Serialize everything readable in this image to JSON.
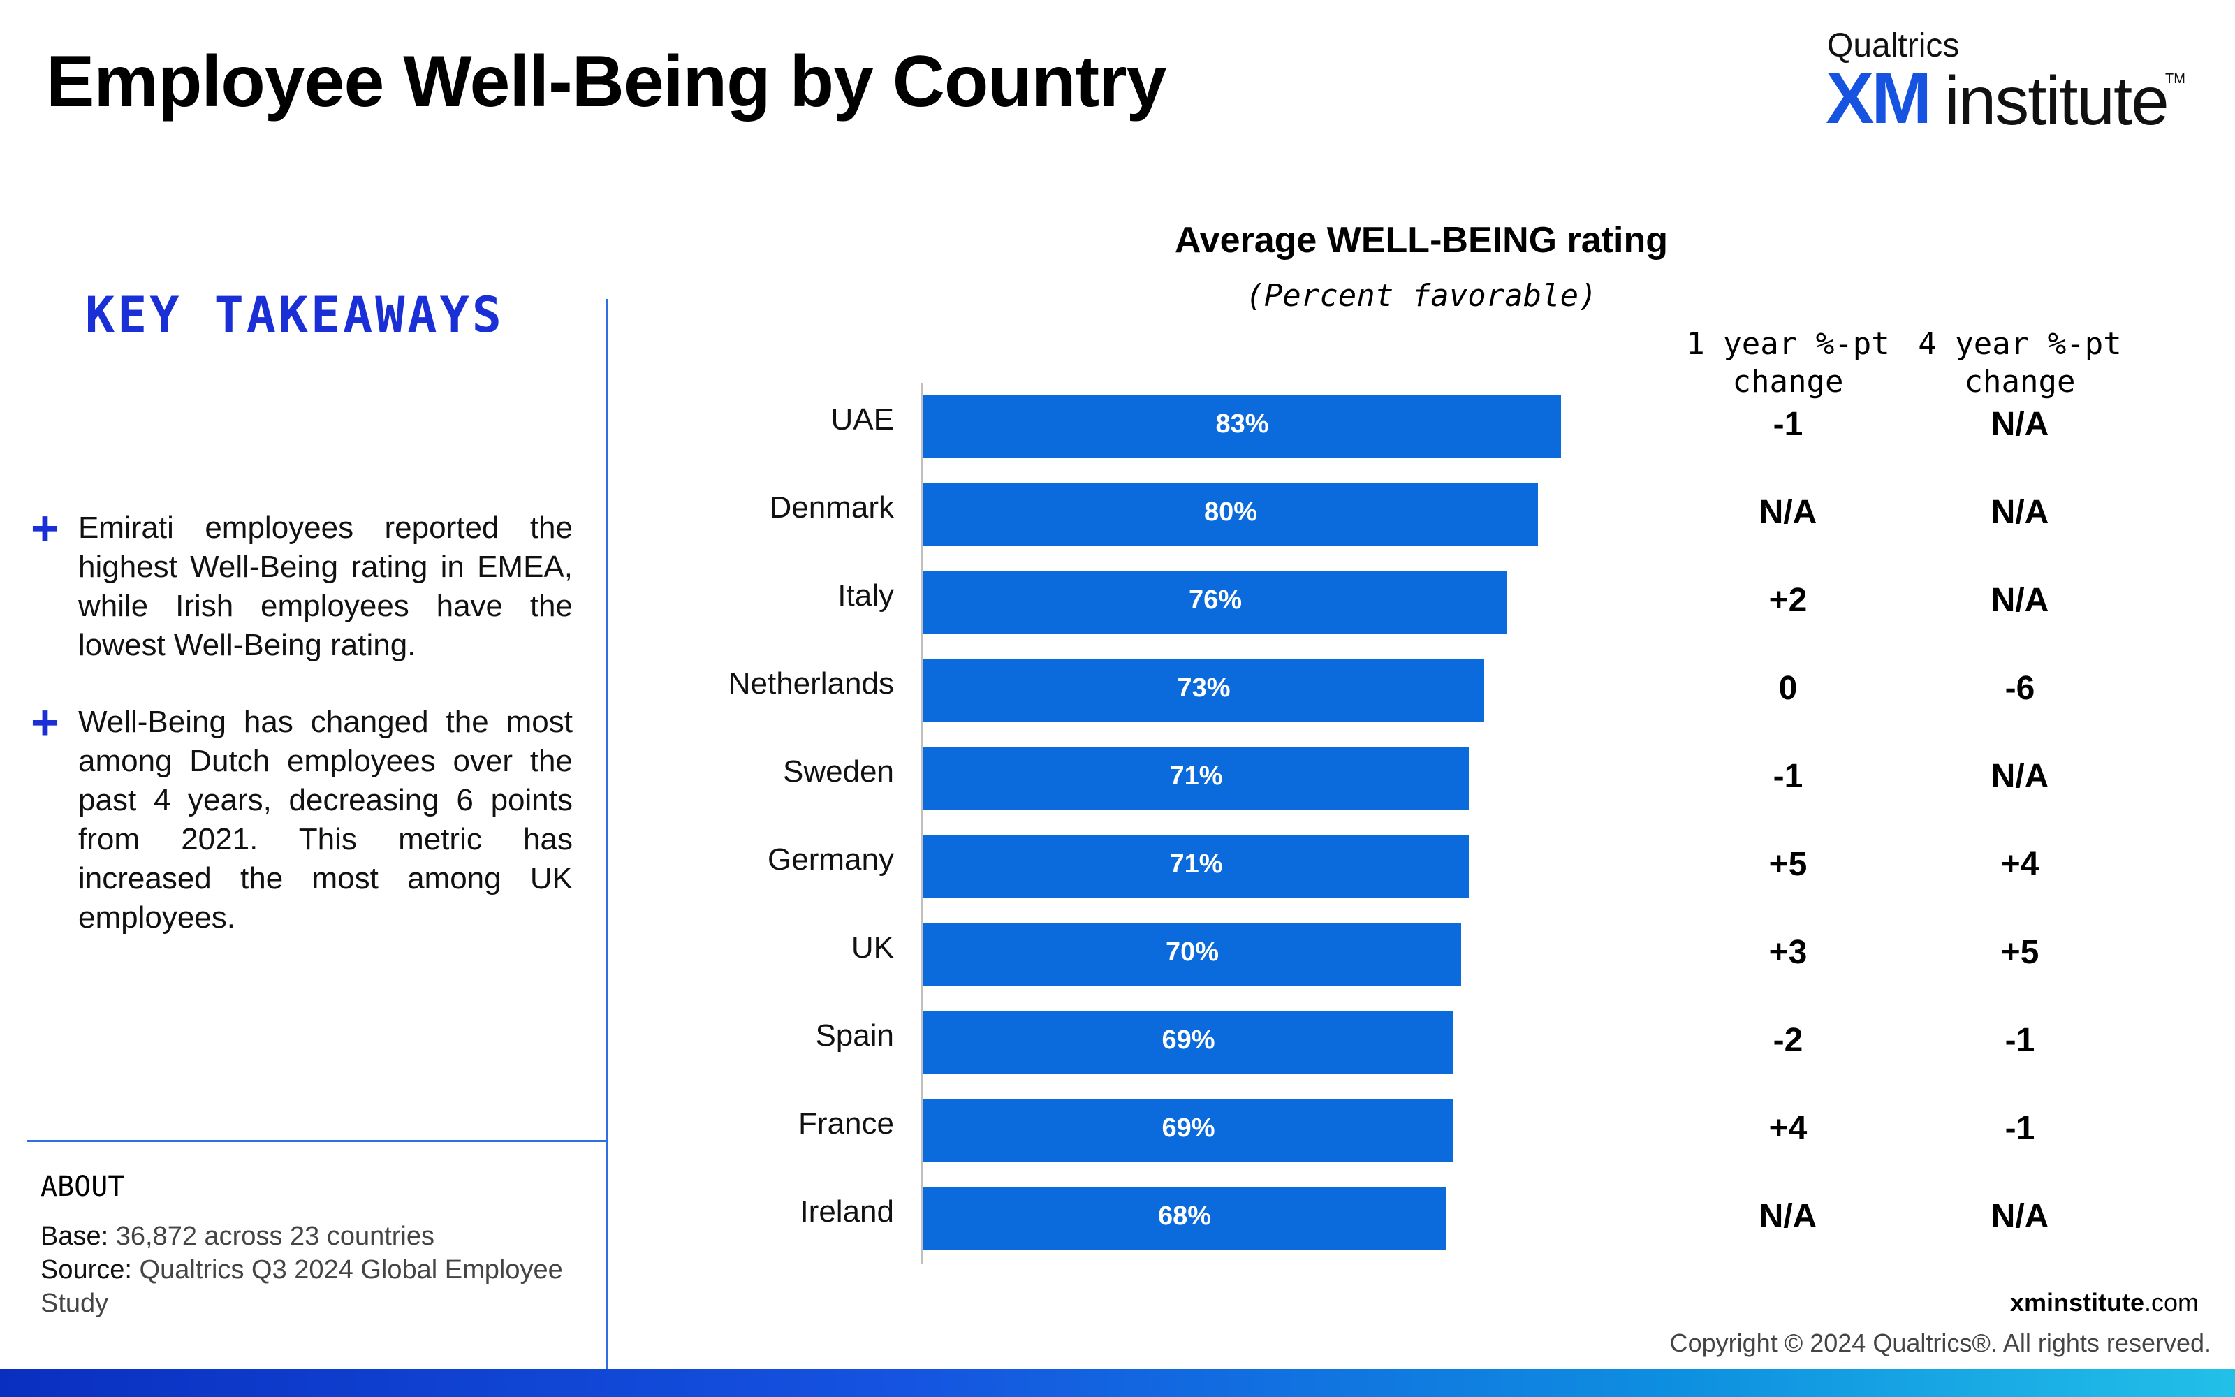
{
  "header": {
    "title": "Employee Well-Being by Country",
    "logo": {
      "brand": "Qualtrics",
      "xm": "XM",
      "word": "institute",
      "tm": "TM"
    }
  },
  "takeaways": {
    "heading": "KEY TAKEAWAYS",
    "items": [
      {
        "icon": "plus-icon",
        "text": "Emirati employees reported the highest Well-Being rating in EMEA, while Irish employees have the lowest Well-Being rating."
      },
      {
        "icon": "plus-icon",
        "text": "Well-Being has changed the most among Dutch employees over the past 4 years, decreasing 6 points from 2021. This metric has increased the most among UK employees."
      }
    ]
  },
  "about": {
    "title": "ABOUT",
    "base_label": "Base:",
    "base_value": "36,872 across 23 countries",
    "source_label": "Source:",
    "source_value": "Qualtrics Q3 2024 Global Employee Study"
  },
  "chart_data": {
    "type": "bar",
    "orientation": "horizontal",
    "title": "Average WELL-BEING rating",
    "subtitle": "(Percent favorable)",
    "categories": [
      "UAE",
      "Denmark",
      "Italy",
      "Netherlands",
      "Sweden",
      "Germany",
      "UK",
      "Spain",
      "France",
      "Ireland"
    ],
    "values": [
      83,
      80,
      76,
      73,
      71,
      71,
      70,
      69,
      69,
      68
    ],
    "value_labels": [
      "83%",
      "80%",
      "76%",
      "73%",
      "71%",
      "71%",
      "70%",
      "69%",
      "69%",
      "68%"
    ],
    "xlim": [
      0,
      100
    ],
    "bar_color": "#0c6bdc",
    "table_columns": [
      {
        "header": "1 year %-pt change",
        "values": [
          "-1",
          "N/A",
          "+2",
          "0",
          "-1",
          "+5",
          "+3",
          "-2",
          "+4",
          "N/A"
        ]
      },
      {
        "header": "4 year %-pt change",
        "values": [
          "N/A",
          "N/A",
          "N/A",
          "-6",
          "N/A",
          "+4",
          "+5",
          "-1",
          "-1",
          "N/A"
        ]
      }
    ]
  },
  "footer": {
    "url_bold": "xminstitute",
    "url_rest": ".com",
    "copyright": "Copyright © 2024 Qualtrics®. All rights reserved."
  },
  "colors": {
    "accent": "#1a2fd6",
    "bar": "#0c6bdc",
    "divider": "#2f6fe3"
  }
}
